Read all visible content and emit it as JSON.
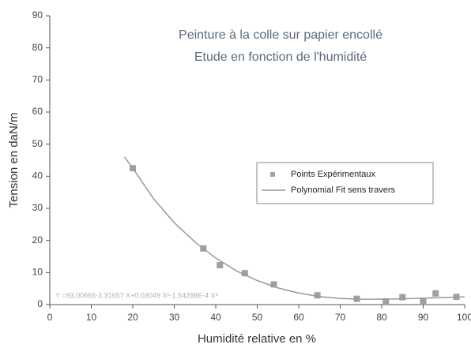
{
  "chart_data": {
    "type": "scatter",
    "title": [
      "Peinture à la colle sur papier encollé",
      "Etude en fonction de l'humidité"
    ],
    "x_label": "Humidité relative en %",
    "y_label": "Tension en daN/m",
    "annotation": "Y =93.00665-3.31657 X+0.03049 X²-1.54288E-4 X³",
    "xlim": [
      0,
      100
    ],
    "xticks": [
      0,
      10,
      20,
      30,
      40,
      50,
      60,
      70,
      80,
      90,
      100
    ],
    "ylim": [
      0,
      90
    ],
    "yticks": [
      0,
      10,
      20,
      30,
      40,
      50,
      60,
      70,
      80,
      90
    ],
    "legend": "right",
    "series": [
      {
        "name": "Points Expérimentaux",
        "kind": "points",
        "color": "#a0a0a0",
        "x": [
          20,
          37,
          41,
          47,
          54,
          64.5,
          74,
          81,
          85,
          90,
          93,
          98
        ],
        "values": [
          42.5,
          17.5,
          12.3,
          9.8,
          6.3,
          2.9,
          1.8,
          1.0,
          2.3,
          1.2,
          3.5,
          2.4
        ]
      },
      {
        "name": "Polynomial Fit sens travers",
        "kind": "line",
        "color": "#9a9a9a",
        "x": [
          18,
          20,
          25,
          30,
          35,
          40,
          45,
          50,
          55,
          60,
          65,
          70,
          75,
          80,
          85,
          90,
          95,
          100
        ],
        "values": [
          46,
          42.5,
          33,
          25.5,
          19.5,
          14.5,
          10.5,
          7.5,
          5.2,
          3.6,
          2.5,
          1.9,
          1.7,
          1.7,
          1.8,
          2,
          2.2,
          2.4
        ]
      }
    ]
  }
}
